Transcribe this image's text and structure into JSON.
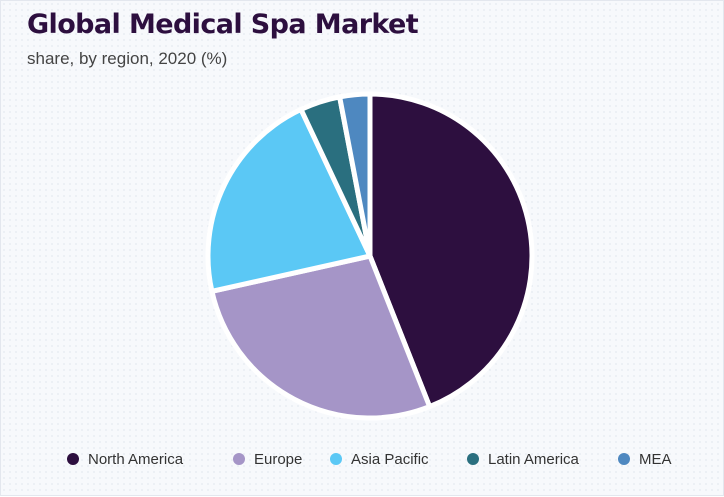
{
  "chart_data": {
    "type": "pie",
    "title": "Global Medical Spa Market",
    "subtitle": "share, by region, 2020 (%)",
    "categories": [
      "North America",
      "Europe",
      "Asia Pacific",
      "Latin America",
      "MEA"
    ],
    "values": [
      44.0,
      27.5,
      21.5,
      4.0,
      3.0
    ],
    "colors": [
      "#2d0f3f",
      "#a595c7",
      "#5bc8f5",
      "#2a6f7f",
      "#4e88c0"
    ],
    "legend_position": "bottom",
    "start_angle": "12 o'clock",
    "direction": "clockwise"
  }
}
